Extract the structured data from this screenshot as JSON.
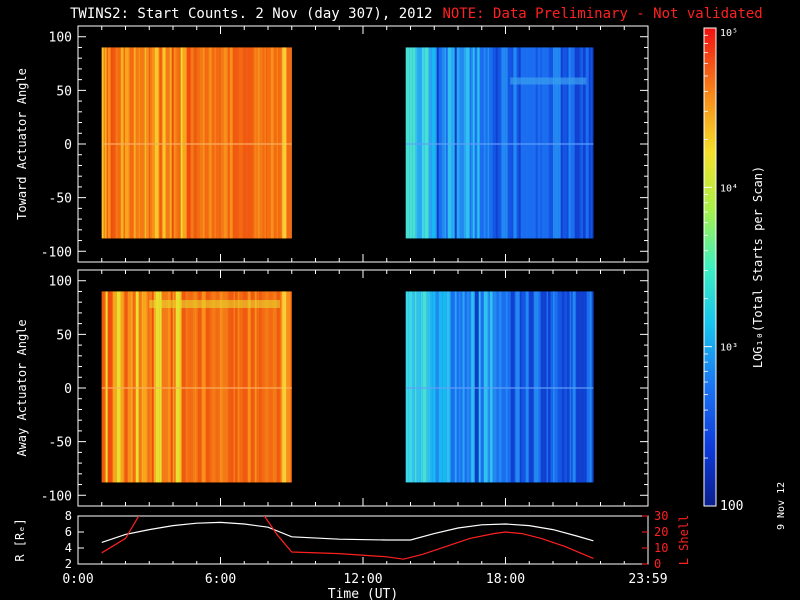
{
  "page": {
    "title": "TWINS2: Start Counts.  2 Nov (day 307), 2012",
    "note": "NOTE: Data Preliminary - Not validated",
    "side_date": "9 Nov 12"
  },
  "colors": {
    "background": "#000000",
    "axis": "#ffffff",
    "note": "#ff2020",
    "r_line": "#ffffff",
    "lshell_line": "#ff2020"
  },
  "chart_data": [
    {
      "type": "heatmap",
      "panel": "top",
      "ylabel": "Toward Actuator Angle",
      "ylim": [
        -110,
        110
      ],
      "yticks": [
        -100,
        -50,
        0,
        50,
        100
      ],
      "xlim": [
        0,
        24
      ],
      "data_blocks": [
        {
          "t_start": 1.0,
          "t_end": 9.0,
          "angle_min": -88,
          "angle_max": 90,
          "level": "high (~1e5, orange-red)"
        },
        {
          "t_start": 13.8,
          "t_end": 21.7,
          "angle_min": -88,
          "angle_max": 90,
          "level": "low (~300-3000, blue-cyan)"
        }
      ]
    },
    {
      "type": "heatmap",
      "panel": "middle",
      "ylabel": "Away Actuator Angle",
      "ylim": [
        -110,
        110
      ],
      "yticks": [
        -100,
        -50,
        0,
        50,
        100
      ],
      "xlim": [
        0,
        24
      ],
      "data_blocks": [
        {
          "t_start": 1.0,
          "t_end": 9.0,
          "angle_min": -88,
          "angle_max": 90,
          "level": "high (~1e5, orange-red)"
        },
        {
          "t_start": 13.8,
          "t_end": 21.7,
          "angle_min": -88,
          "angle_max": 90,
          "level": "low (~300-3000, blue-cyan)"
        }
      ]
    },
    {
      "type": "line",
      "panel": "bottom",
      "xlabel": "Time (UT)",
      "xlim": [
        0,
        24
      ],
      "xticks": [
        0,
        6,
        12,
        18,
        24
      ],
      "xtick_labels": [
        "0:00",
        "6:00",
        "12:00",
        "18:00",
        "23:59"
      ],
      "ylabel_left": "R [Rₑ]",
      "ylim_left": [
        2,
        8
      ],
      "yticks_left": [
        2,
        4,
        6,
        8
      ],
      "ylabel_right": "L Shell",
      "ylim_right": [
        0,
        30
      ],
      "yticks_right": [
        0,
        10,
        20,
        30
      ],
      "series": [
        {
          "name": "R",
          "axis": "left",
          "x": [
            1.0,
            2.0,
            3.0,
            4.0,
            5.0,
            6.0,
            7.0,
            8.0,
            9.0,
            11.0,
            13.0,
            14.0,
            15.0,
            16.0,
            17.0,
            18.0,
            19.0,
            20.0,
            21.0,
            21.7
          ],
          "y": [
            4.7,
            5.7,
            6.3,
            6.8,
            7.1,
            7.2,
            7.0,
            6.6,
            5.4,
            5.1,
            5.0,
            5.0,
            5.8,
            6.5,
            6.9,
            7.0,
            6.8,
            6.3,
            5.5,
            4.9
          ]
        },
        {
          "name": "L Shell",
          "axis": "right",
          "segments": [
            {
              "x": [
                1.0,
                2.0,
                2.6
              ],
              "y": [
                7.0,
                16.0,
                31.0
              ]
            },
            {
              "x": [
                7.8,
                8.4,
                9.0,
                11.0,
                13.0,
                13.7,
                14.5,
                15.5,
                16.5,
                17.5,
                18.0,
                18.7,
                19.5,
                20.5,
                21.7
              ],
              "y": [
                31.0,
                18.0,
                7.5,
                6.5,
                4.5,
                3.0,
                6.0,
                11.0,
                16.0,
                19.0,
                20.0,
                19.0,
                16.0,
                11.0,
                3.5
              ]
            }
          ]
        }
      ]
    }
  ],
  "colorbar": {
    "label": "LOG₁₀(Total Starts per Scan)",
    "scale": "log",
    "range": [
      100,
      100000
    ],
    "tick_labels": [
      "100",
      "10³",
      "10⁴",
      "10⁵"
    ],
    "tick_values": [
      100,
      1000,
      10000,
      100000
    ]
  }
}
